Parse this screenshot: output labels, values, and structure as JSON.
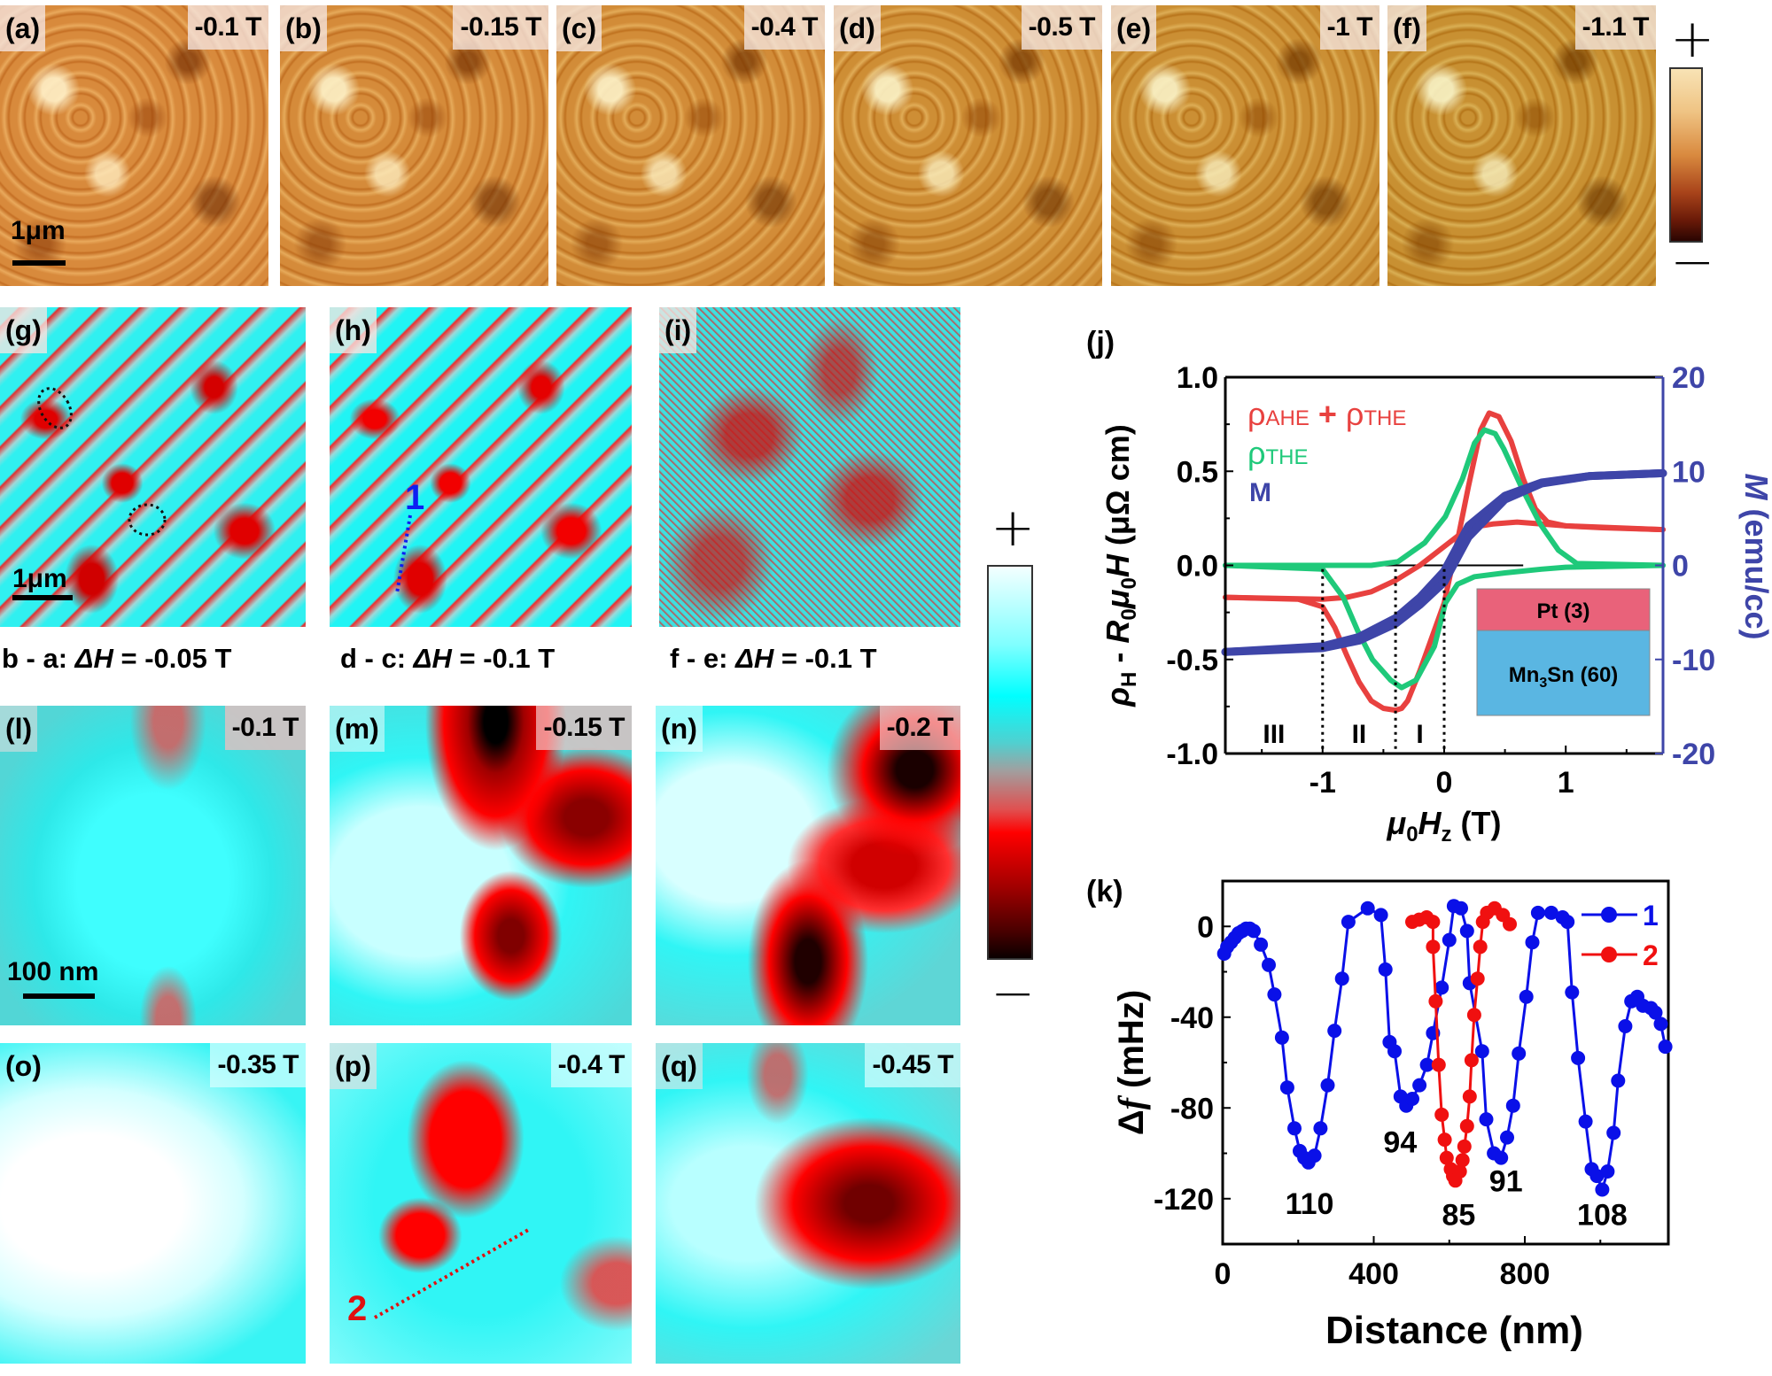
{
  "top_row": {
    "panels": [
      {
        "label": "(a)",
        "field": "-0.1 T"
      },
      {
        "label": "(b)",
        "field": "-0.15 T"
      },
      {
        "label": "(c)",
        "field": "-0.4 T"
      },
      {
        "label": "(d)",
        "field": "-0.5 T"
      },
      {
        "label": "(e)",
        "field": "-1 T"
      },
      {
        "label": "(f)",
        "field": "-1.1 T"
      }
    ],
    "scale_bar": "1μm",
    "colorbar": {
      "plus": "+",
      "minus": "−",
      "colors": [
        "#F8E3B5",
        "#EBB064",
        "#C8662A",
        "#8B2A0E",
        "#3A0A04"
      ]
    }
  },
  "diff_row": {
    "panels": [
      {
        "label": "(g)",
        "caption_pre": "b - a: ",
        "caption_var": "ΔH",
        "caption_post": " = -0.05 T"
      },
      {
        "label": "(h)",
        "caption_pre": "d - c: ",
        "caption_var": "ΔH",
        "caption_post": " = -0.1 T",
        "line_label": "1"
      },
      {
        "label": "(i)",
        "caption_pre": "f - e: ",
        "caption_var": "ΔH",
        "caption_post": " = -0.1 T"
      }
    ],
    "scale_bar": "1μm"
  },
  "zoom_rows": {
    "panels": [
      {
        "label": "(l)",
        "field": "-0.1 T"
      },
      {
        "label": "(m)",
        "field": "-0.15 T"
      },
      {
        "label": "(n)",
        "field": "-0.2 T"
      },
      {
        "label": "(o)",
        "field": "-0.35 T"
      },
      {
        "label": "(p)",
        "field": "-0.4 T",
        "line_label": "2"
      },
      {
        "label": "(q)",
        "field": "-0.45 T"
      }
    ],
    "scale_bar": "100 nm"
  },
  "colorbar_mid": {
    "plus": "+",
    "minus": "−",
    "colors": [
      "#F0FFFF",
      "#00FFFF",
      "#55CCCC",
      "#A0A0A0",
      "#E04040",
      "#FF0000",
      "#A00000",
      "#100000"
    ]
  },
  "chart_data": [
    {
      "id": "j",
      "panel_label": "(j)",
      "type": "line",
      "xlabel": "μ0Hz (T)",
      "ylabel": "ρH - R0μ0H (μΩ cm)",
      "ylabel_right": "M (emu/cc)",
      "xlim": [
        -1.8,
        1.8
      ],
      "ylim": [
        -1.0,
        1.0
      ],
      "ylim_right": [
        -20,
        20
      ],
      "xticks": [
        -1,
        0,
        1
      ],
      "yticks": [
        -1.0,
        -0.5,
        0.0,
        0.5,
        1.0
      ],
      "ytick_labels": [
        "-1.0",
        "-0.5",
        "0.0",
        "0.5",
        "1.0"
      ],
      "yticks_right": [
        -20,
        -10,
        0,
        10,
        20
      ],
      "legend": [
        {
          "label": "ρAHE + ρTHE",
          "main": "ρ",
          "sub": "AHE",
          "mid": " + ρ",
          "sub2": "THE",
          "color": "#E8413F"
        },
        {
          "label": "ρTHE",
          "main": "ρ",
          "sub": "THE",
          "color": "#1FC97A"
        },
        {
          "label": "M",
          "main": "M",
          "color": "#3E45A8"
        }
      ],
      "legend_position": "top-left",
      "regions": {
        "labels": [
          "III",
          "II",
          "I"
        ],
        "boundaries": [
          -1.0,
          -0.4,
          0.0
        ]
      },
      "inset": {
        "layers": [
          {
            "label": "Pt (3)",
            "color": "#E9627A"
          },
          {
            "label": "Mn3Sn (60)",
            "color": "#5AB6E2"
          }
        ]
      },
      "series": [
        {
          "name": "ρAHE + ρTHE (branch 1)",
          "color": "#E8413F",
          "axis": "left",
          "x": [
            -1.8,
            -1.2,
            -1.0,
            -0.9,
            -0.8,
            -0.7,
            -0.6,
            -0.5,
            -0.4,
            -0.35,
            -0.3,
            -0.2,
            -0.1,
            0.0,
            0.1,
            0.2,
            0.3,
            0.37,
            0.45,
            0.55,
            0.65,
            0.75,
            0.85,
            1.0,
            1.3,
            1.8
          ],
          "y": [
            -0.17,
            -0.18,
            -0.22,
            -0.33,
            -0.48,
            -0.62,
            -0.72,
            -0.76,
            -0.77,
            -0.76,
            -0.72,
            -0.56,
            -0.38,
            -0.2,
            0.1,
            0.42,
            0.72,
            0.81,
            0.79,
            0.66,
            0.46,
            0.3,
            0.23,
            0.21,
            0.2,
            0.19
          ]
        },
        {
          "name": "ρAHE + ρTHE (branch 2)",
          "color": "#E8413F",
          "axis": "left",
          "x": [
            -1.8,
            -1.0,
            -0.8,
            -0.6,
            -0.4,
            -0.2,
            0.0,
            0.2,
            0.4,
            0.6,
            0.8,
            1.0,
            1.8
          ],
          "y": [
            -0.17,
            -0.18,
            -0.17,
            -0.14,
            -0.08,
            0.0,
            0.1,
            0.2,
            0.22,
            0.23,
            0.22,
            0.21,
            0.19
          ]
        },
        {
          "name": "ρTHE (branch 1)",
          "color": "#1FC97A",
          "axis": "left",
          "x": [
            -1.8,
            -1.0,
            -0.83,
            -0.71,
            -0.59,
            -0.44,
            -0.35,
            -0.23,
            -0.08,
            0.01,
            0.11,
            0.25,
            0.5,
            0.8,
            1.0,
            1.8
          ],
          "y": [
            0.0,
            -0.02,
            -0.17,
            -0.35,
            -0.5,
            -0.61,
            -0.65,
            -0.61,
            -0.43,
            -0.2,
            -0.1,
            -0.06,
            -0.04,
            -0.02,
            -0.01,
            0.0
          ]
        },
        {
          "name": "ρTHE (branch 2)",
          "color": "#1FC97A",
          "axis": "left",
          "x": [
            -1.8,
            -0.6,
            -0.38,
            -0.16,
            0.01,
            0.15,
            0.25,
            0.33,
            0.42,
            0.49,
            0.64,
            0.79,
            0.94,
            1.09,
            1.8
          ],
          "y": [
            0.0,
            0.0,
            0.02,
            0.12,
            0.26,
            0.46,
            0.65,
            0.72,
            0.7,
            0.62,
            0.41,
            0.22,
            0.08,
            0.01,
            0.0
          ]
        },
        {
          "name": "M (branch 1)",
          "color": "#3E45A8",
          "axis": "right",
          "x": [
            -1.8,
            -1.0,
            -0.7,
            -0.4,
            -0.2,
            0.0,
            0.2,
            0.5,
            0.8,
            1.2,
            1.8
          ],
          "y": [
            -9.2,
            -8.6,
            -7.6,
            -5.6,
            -3.4,
            -0.6,
            4.2,
            7.4,
            8.8,
            9.5,
            9.8
          ]
        },
        {
          "name": "M (branch 2)",
          "color": "#3E45A8",
          "axis": "right",
          "x": [
            -1.8,
            -1.0,
            -0.7,
            -0.4,
            -0.2,
            0.0,
            0.2,
            0.5,
            0.8,
            1.2,
            1.8
          ],
          "y": [
            -9.2,
            -8.8,
            -8.0,
            -6.2,
            -4.2,
            -1.8,
            3.0,
            7.0,
            8.7,
            9.5,
            9.8
          ]
        }
      ]
    },
    {
      "id": "k",
      "panel_label": "(k)",
      "type": "line",
      "xlabel": "Distance (nm)",
      "ylabel": "Δf (mHz)",
      "xlim": [
        0,
        1180
      ],
      "ylim": [
        -140,
        20
      ],
      "xticks": [
        0,
        400,
        800
      ],
      "yticks": [
        -120,
        -80,
        -40,
        0
      ],
      "legend": [
        {
          "label": "1",
          "color": "#0A10E8"
        },
        {
          "label": "2",
          "color": "#F01010"
        }
      ],
      "legend_position": "top-right",
      "annotations": [
        {
          "text": "110",
          "x": 230,
          "y": -122
        },
        {
          "text": "94",
          "x": 470,
          "y": -95
        },
        {
          "text": "85",
          "x": 625,
          "y": -127
        },
        {
          "text": "91",
          "x": 750,
          "y": -112
        },
        {
          "text": "108",
          "x": 1005,
          "y": -127
        }
      ],
      "series": [
        {
          "name": "1",
          "color": "#0A10E8",
          "x": [
            4,
            12,
            22,
            32,
            42,
            52,
            62,
            72,
            82,
            101,
            122,
            137,
            157,
            171,
            190,
            204,
            216,
            227,
            243,
            259,
            278,
            296,
            316,
            333,
            384,
            419,
            431,
            442,
            455,
            471,
            486,
            502,
            521,
            541,
            557,
            580,
            600,
            612,
            631,
            647,
            654,
            687,
            698,
            718,
            737,
            753,
            769,
            784,
            804,
            820,
            835,
            870,
            900,
            913,
            925,
            941,
            961,
            977,
            991,
            1005,
            1019,
            1035,
            1047,
            1066,
            1082,
            1098,
            1113,
            1134,
            1146,
            1160,
            1172
          ],
          "y": [
            -12,
            -9,
            -7,
            -5,
            -3,
            -2,
            -1,
            -1,
            -2,
            -8,
            -17,
            -30,
            -49,
            -71,
            -89,
            -99,
            -102,
            -104,
            -101,
            -89,
            -70,
            -46,
            -23,
            2,
            8,
            5,
            -19,
            -51,
            -55,
            -75,
            -79,
            -76,
            -70,
            -61,
            -47,
            -27,
            -6,
            9,
            8,
            -2,
            -25,
            -55,
            -85,
            -100,
            -102,
            -93,
            -79,
            -56,
            -31,
            -7,
            6,
            6,
            4,
            2,
            -29,
            -58,
            -86,
            -107,
            -110,
            -116,
            -108,
            -91,
            -68,
            -44,
            -33,
            -31,
            -35,
            -36,
            -38,
            -43,
            -53
          ]
        },
        {
          "name": "2",
          "color": "#F01010",
          "x": [
            502,
            520,
            540,
            557,
            557,
            564,
            572,
            580,
            588,
            593,
            604,
            610,
            616,
            628,
            635,
            640,
            647,
            654,
            659,
            666,
            675,
            682,
            689,
            700,
            720,
            742,
            760
          ],
          "y": [
            2,
            3,
            4,
            2,
            -9,
            -33,
            -61,
            -83,
            -94,
            -102,
            -107,
            -110,
            -112,
            -108,
            -103,
            -97,
            -88,
            -75,
            -59,
            -39,
            -23,
            -9,
            2,
            6,
            8,
            5,
            1
          ]
        }
      ]
    }
  ]
}
